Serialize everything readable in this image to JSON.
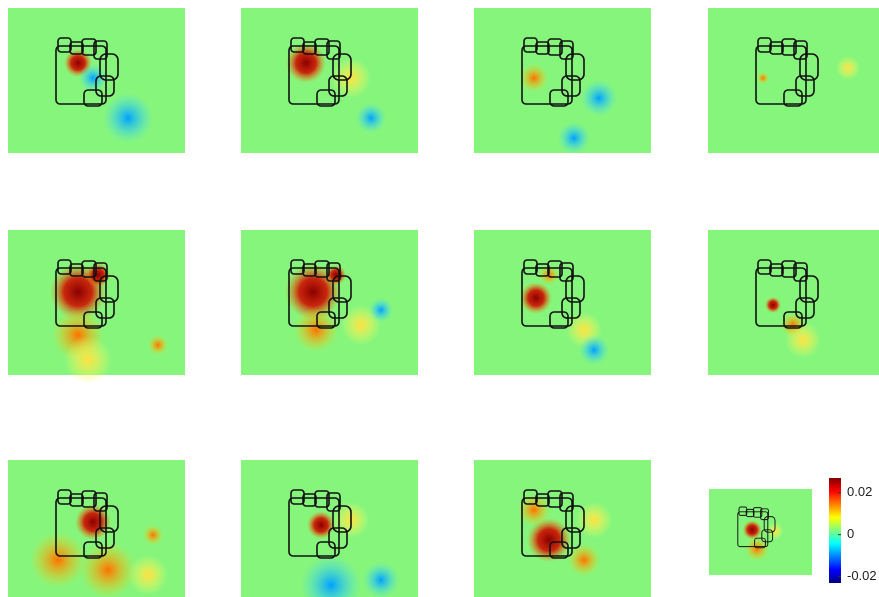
{
  "colorbar": {
    "lim": [
      -0.023,
      0.027
    ],
    "ticks": [
      0.02,
      0,
      -0.02
    ]
  }
}
